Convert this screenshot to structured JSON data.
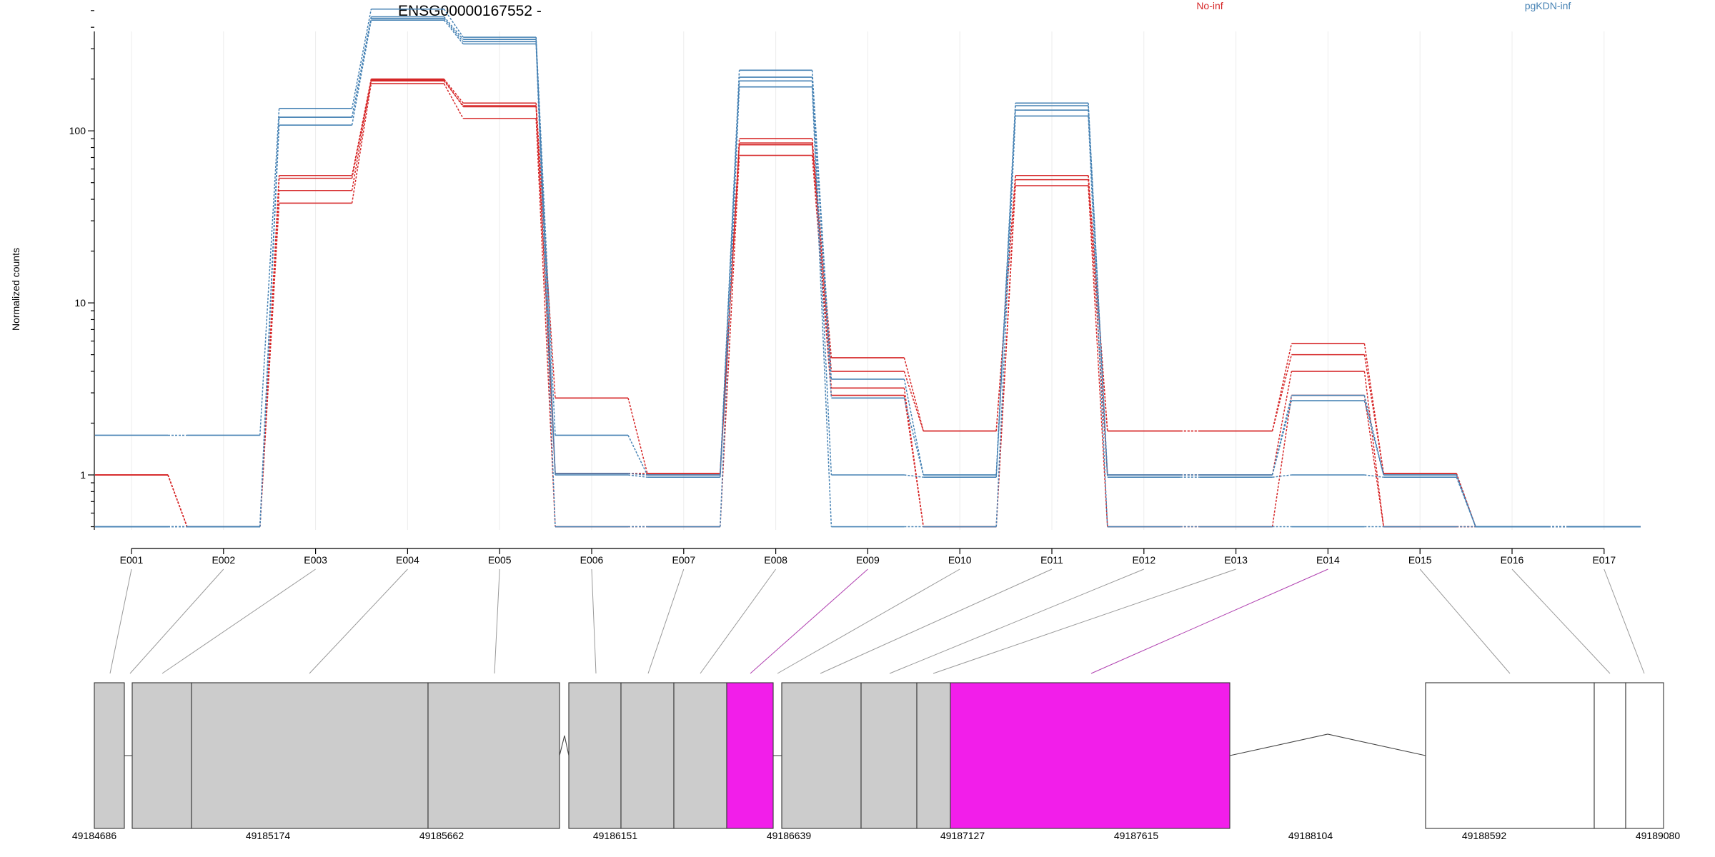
{
  "chart_data": {
    "type": "line",
    "title": "ENSG00000167552 -",
    "xlabel": "",
    "ylabel": "Normalized counts",
    "y_scale": "log",
    "ylim": [
      0.5,
      650
    ],
    "y_ticks": [
      1,
      10,
      100
    ],
    "grid": true,
    "legend": "top-right",
    "categories": [
      "E001",
      "E002",
      "E003",
      "E004",
      "E005",
      "E006",
      "E007",
      "E008",
      "E009",
      "E010",
      "E011",
      "E012",
      "E013",
      "E014",
      "E015",
      "E016",
      "E017"
    ],
    "series": [
      {
        "name": "No-inf",
        "color": "#d62728",
        "values": [
          1,
          0.5,
          55,
          200,
          145,
          2.8,
          1.02,
          90,
          4.8,
          1.8,
          55,
          1.8,
          1.8,
          5.8,
          1.02,
          0.5,
          0.5
        ]
      },
      {
        "name": "No-inf",
        "color": "#d62728",
        "values": [
          1,
          0.5,
          53,
          195,
          140,
          1.02,
          1.02,
          85,
          4.0,
          1.8,
          55,
          1.8,
          1.8,
          5.0,
          1.02,
          0.5,
          0.5
        ]
      },
      {
        "name": "No-inf",
        "color": "#d62728",
        "values": [
          1,
          0.5,
          45,
          198,
          138,
          1.02,
          1.0,
          83,
          3.2,
          0.5,
          52,
          1.0,
          1.0,
          4.0,
          0.5,
          0.5,
          0.5
        ]
      },
      {
        "name": "No-inf",
        "color": "#d62728",
        "values": [
          1,
          0.5,
          38,
          188,
          118,
          0.5,
          0.5,
          72,
          2.9,
          0.5,
          48,
          0.5,
          0.5,
          2.9,
          0.5,
          0.5,
          0.5
        ]
      },
      {
        "name": "pgKDN-inf",
        "color": "#4682b4",
        "values": [
          1.7,
          1.7,
          135,
          510,
          350,
          1.7,
          1.0,
          225,
          3.6,
          1.0,
          145,
          1.0,
          1.0,
          2.9,
          1.0,
          0.5,
          0.5
        ]
      },
      {
        "name": "pgKDN-inf",
        "color": "#4682b4",
        "values": [
          0.5,
          0.5,
          120,
          460,
          340,
          1.02,
          1.0,
          205,
          2.8,
          1.0,
          140,
          1.0,
          1.0,
          2.7,
          1.0,
          0.5,
          0.5
        ]
      },
      {
        "name": "pgKDN-inf",
        "color": "#4682b4",
        "values": [
          0.5,
          0.5,
          120,
          450,
          330,
          1.0,
          0.97,
          195,
          1.0,
          0.97,
          132,
          0.97,
          0.97,
          1.0,
          0.97,
          0.5,
          0.5
        ]
      },
      {
        "name": "pgKDN-inf",
        "color": "#4682b4",
        "values": [
          0.5,
          0.5,
          108,
          440,
          320,
          0.5,
          0.5,
          180,
          0.5,
          0.5,
          122,
          0.5,
          0.5,
          0.5,
          0.5,
          0.5,
          0.5
        ]
      }
    ],
    "legend_entries": [
      {
        "label": "No-inf",
        "color": "#d62728"
      },
      {
        "label": "pgKDN-inf",
        "color": "#4682b4"
      }
    ],
    "gene_model": {
      "coordinate_ticks": [
        "49184686",
        "49185174",
        "49185662",
        "49186151",
        "49186639",
        "49187127",
        "49187615",
        "49188104",
        "49188592",
        "49189080"
      ],
      "highlight_color": "#f21eea",
      "exon_fill": "#cccccc",
      "highlighted_exons": [
        "E009",
        "E014"
      ]
    }
  }
}
